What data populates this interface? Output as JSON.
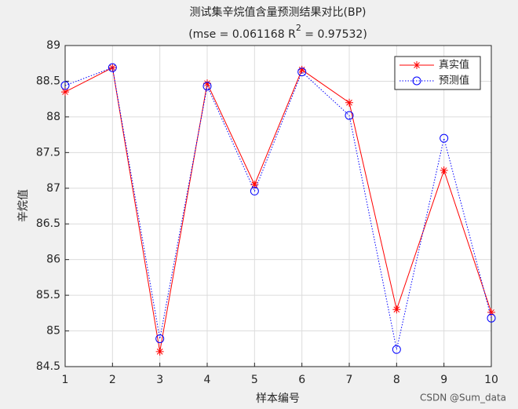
{
  "chart_data": {
    "type": "line",
    "title": "测试集辛烷值含量预测结果对比(BP)",
    "subtitle_parts": [
      "(mse = 0.061168 R",
      "2",
      " = 0.97532)"
    ],
    "x_label": "样本编号",
    "y_label": "辛烷值",
    "x": [
      1,
      2,
      3,
      4,
      5,
      6,
      7,
      8,
      9,
      10
    ],
    "series": [
      {
        "name": "真实值",
        "color": "#ff0000",
        "values": [
          88.35,
          88.69,
          84.71,
          88.47,
          87.05,
          88.66,
          88.2,
          85.3,
          87.25,
          85.26
        ]
      },
      {
        "name": "预测值",
        "color": "#0000ff",
        "values": [
          88.44,
          88.69,
          84.89,
          88.43,
          86.96,
          88.63,
          88.02,
          84.74,
          87.7,
          85.18
        ]
      }
    ],
    "xlim": [
      1,
      10
    ],
    "xticks": [
      1,
      2,
      3,
      4,
      5,
      6,
      7,
      8,
      9,
      10
    ],
    "ylim": [
      84.5,
      89
    ],
    "yticks": [
      84.5,
      85,
      85.5,
      86,
      86.5,
      87,
      87.5,
      88,
      88.5,
      89
    ],
    "grid": true,
    "legend": "northeast",
    "watermark": "CSDN @Sum_data"
  }
}
